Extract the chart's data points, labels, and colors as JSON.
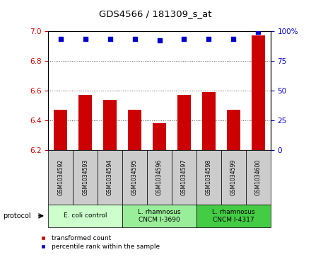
{
  "title": "GDS4566 / 181309_s_at",
  "samples": [
    "GSM1034592",
    "GSM1034593",
    "GSM1034594",
    "GSM1034595",
    "GSM1034596",
    "GSM1034597",
    "GSM1034598",
    "GSM1034599",
    "GSM1034600"
  ],
  "transformed_count": [
    6.47,
    6.57,
    6.54,
    6.47,
    6.38,
    6.57,
    6.59,
    6.47,
    6.97
  ],
  "percentile_rank": [
    93,
    93,
    93,
    93,
    92,
    93,
    93,
    93,
    99
  ],
  "ylim_left": [
    6.2,
    7.0
  ],
  "ylim_right": [
    0,
    100
  ],
  "yticks_left": [
    6.2,
    6.4,
    6.6,
    6.8,
    7.0
  ],
  "yticks_right": [
    0,
    25,
    50,
    75,
    100
  ],
  "bar_color": "#cc0000",
  "dot_color": "#0000cc",
  "groups": [
    {
      "label": "E. coli control",
      "start": 0,
      "end": 3,
      "color": "#ccffcc"
    },
    {
      "label": "L. rhamnosus\nCNCM I-3690",
      "start": 3,
      "end": 6,
      "color": "#99ee99"
    },
    {
      "label": "L. rhamnosus\nCNCM I-4317",
      "start": 6,
      "end": 9,
      "color": "#44cc44"
    }
  ],
  "legend_items": [
    {
      "label": "transformed count",
      "color": "#cc0000"
    },
    {
      "label": "percentile rank within the sample",
      "color": "#0000cc"
    }
  ],
  "protocol_label": "protocol",
  "bg_color": "#ffffff",
  "sample_box_color": "#cccccc",
  "group_colors": [
    "#ccffcc",
    "#99ee99",
    "#44cc44"
  ],
  "dotted_line_color": "#555555",
  "dotted_lines": [
    6.4,
    6.6,
    6.8
  ]
}
